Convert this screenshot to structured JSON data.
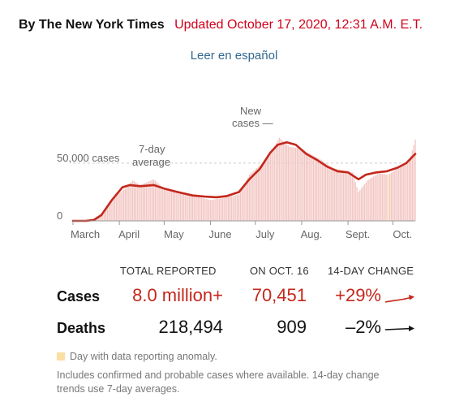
{
  "header": {
    "byline": "By The New York Times",
    "updated": "Updated October 17, 2020, 12:31 A.M. E.T.",
    "spanish_link": "Leer en español"
  },
  "chart_data": {
    "type": "bar",
    "title": "",
    "xlabel": "",
    "ylabel": "",
    "ylim": [
      0,
      83000
    ],
    "y_ticks": [
      {
        "value": 0,
        "label": "0"
      },
      {
        "value": 50000,
        "label": "50,000 cases"
      }
    ],
    "x_labels": [
      "March",
      "April",
      "May",
      "June",
      "July",
      "Aug.",
      "Sept.",
      "Oct."
    ],
    "annotations": {
      "seven_day_line1": "7-day",
      "seven_day_line2": "average",
      "new_cases_line1": "New",
      "new_cases_line2": "cases —"
    },
    "series": [
      {
        "name": "New cases",
        "kind": "bars",
        "color": "#f2c6c3",
        "dates": [
          "2020-03-01",
          "2020-03-15",
          "2020-03-22",
          "2020-03-29",
          "2020-04-05",
          "2020-04-10",
          "2020-04-15",
          "2020-04-24",
          "2020-05-01",
          "2020-05-10",
          "2020-05-20",
          "2020-06-01",
          "2020-06-10",
          "2020-06-20",
          "2020-06-27",
          "2020-07-04",
          "2020-07-11",
          "2020-07-17",
          "2020-07-24",
          "2020-07-31",
          "2020-08-07",
          "2020-08-14",
          "2020-08-21",
          "2020-08-28",
          "2020-09-04",
          "2020-09-08",
          "2020-09-14",
          "2020-09-21",
          "2020-09-28",
          "2020-10-05",
          "2020-10-12",
          "2020-10-16"
        ],
        "values": [
          50,
          1200,
          8000,
          21000,
          28000,
          35000,
          31000,
          36000,
          28000,
          26000,
          22000,
          18000,
          20000,
          23000,
          40000,
          48000,
          58000,
          72000,
          64000,
          63000,
          58000,
          53000,
          46000,
          44000,
          42000,
          25000,
          35000,
          41000,
          40000,
          46000,
          52000,
          70451
        ]
      },
      {
        "name": "7-day average",
        "kind": "line",
        "color": "#c4271b",
        "dates": [
          "2020-03-01",
          "2020-03-10",
          "2020-03-15",
          "2020-03-20",
          "2020-03-27",
          "2020-04-03",
          "2020-04-08",
          "2020-04-15",
          "2020-04-24",
          "2020-05-01",
          "2020-05-10",
          "2020-05-20",
          "2020-05-28",
          "2020-06-05",
          "2020-06-12",
          "2020-06-20",
          "2020-06-27",
          "2020-07-04",
          "2020-07-11",
          "2020-07-16",
          "2020-07-22",
          "2020-07-28",
          "2020-08-04",
          "2020-08-11",
          "2020-08-18",
          "2020-08-25",
          "2020-09-01",
          "2020-09-08",
          "2020-09-13",
          "2020-09-20",
          "2020-09-27",
          "2020-10-04",
          "2020-10-10",
          "2020-10-16"
        ],
        "values": [
          0,
          100,
          800,
          5000,
          18000,
          29000,
          31000,
          30000,
          31000,
          28000,
          25000,
          22000,
          21000,
          20500,
          21500,
          25000,
          36000,
          45000,
          59000,
          66000,
          68000,
          66000,
          58000,
          53000,
          47000,
          43000,
          42000,
          36000,
          40000,
          42000,
          43000,
          46000,
          50000,
          58000
        ]
      }
    ],
    "anomaly_color": "#f9dfa1",
    "anomaly_dates": [
      "2020-09-28"
    ]
  },
  "stats": {
    "headers": [
      "TOTAL REPORTED",
      "ON OCT. 16",
      "14-DAY CHANGE"
    ],
    "rows": [
      {
        "label": "Cases",
        "total": "8.0 million+",
        "day": "70,451",
        "change": "+29%",
        "trend": "up"
      },
      {
        "label": "Deaths",
        "total": "218,494",
        "day": "909",
        "change": "–2%",
        "trend": "flat"
      }
    ]
  },
  "footer": {
    "legend": "Day with data reporting anomaly.",
    "note": "Includes confirmed and probable cases where available. 14-day change trends use 7-day averages."
  }
}
